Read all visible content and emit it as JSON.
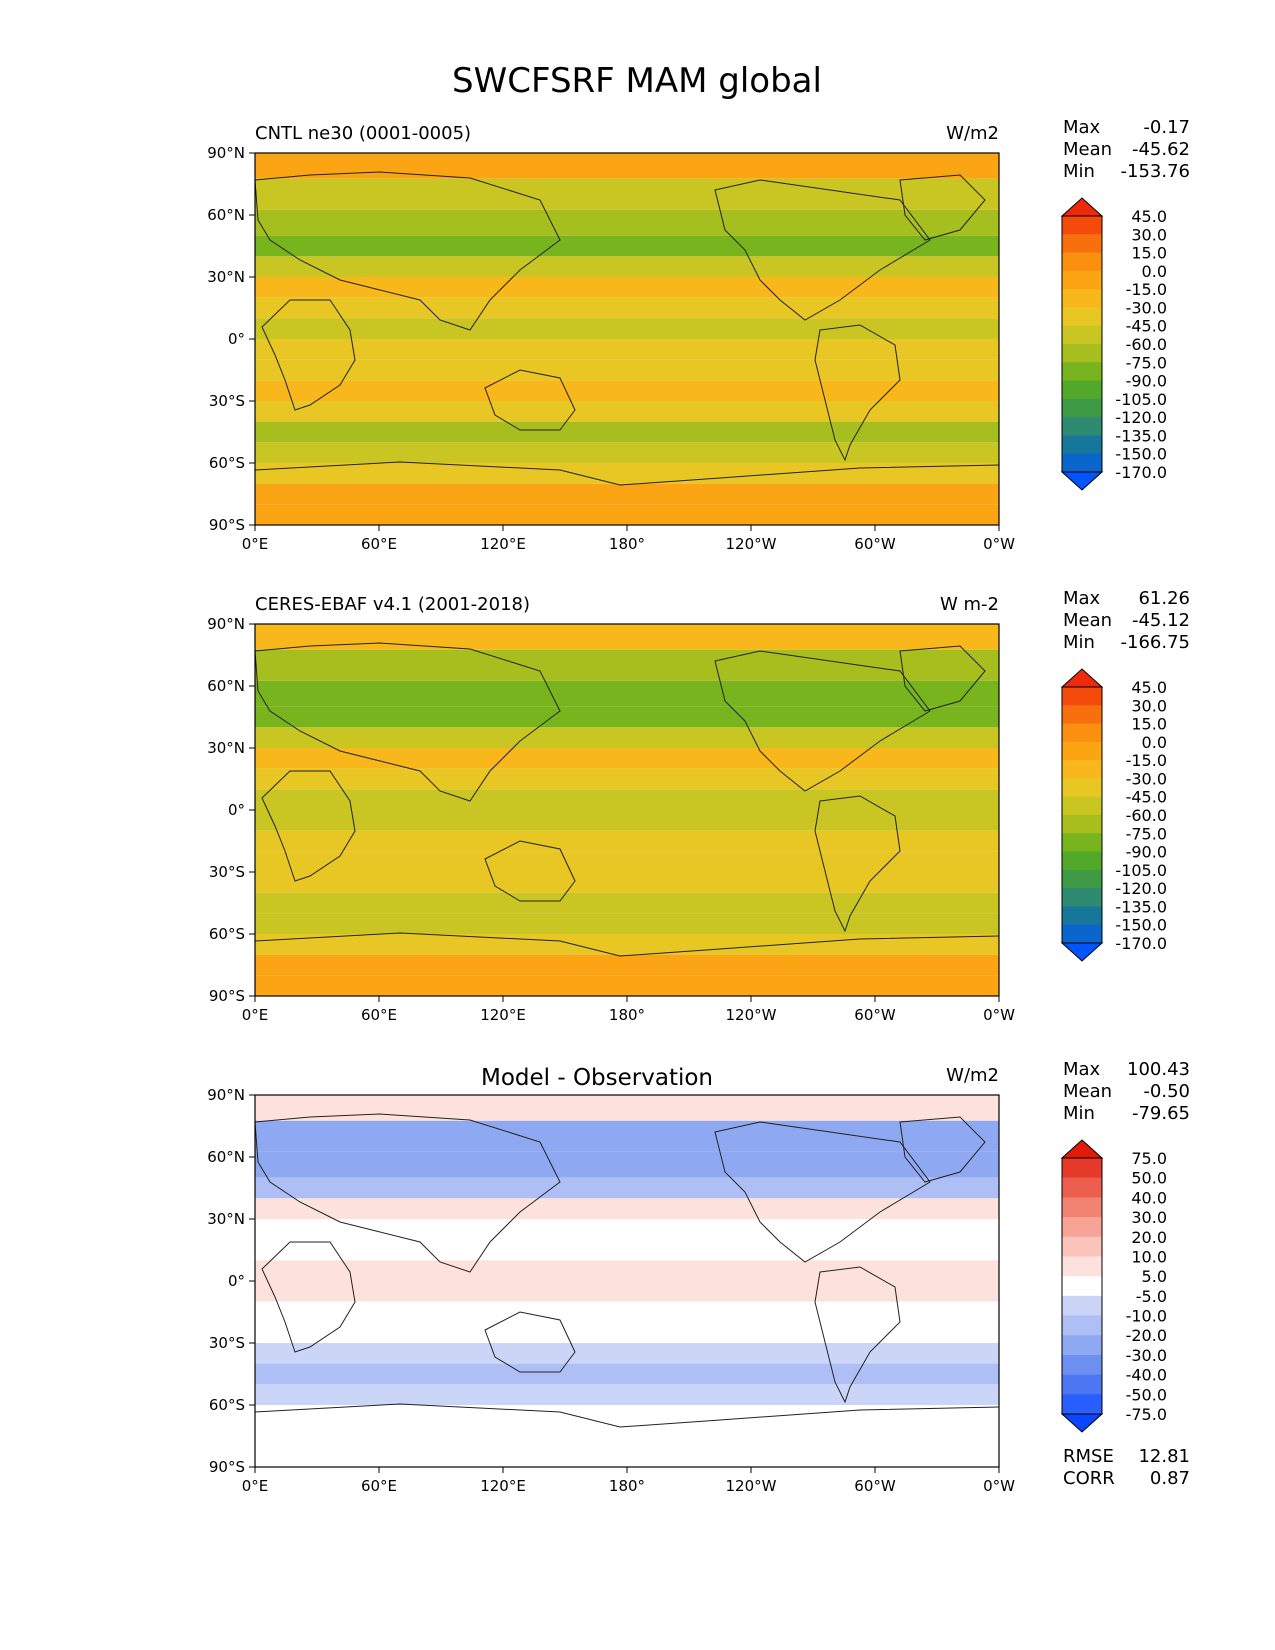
{
  "title": "SWCFSRF MAM global",
  "panel_colors": {
    "green_scale": [
      "#0055ff",
      "#0a66cc",
      "#16779a",
      "#2e8a70",
      "#3e9a45",
      "#52a828",
      "#78b41e",
      "#a6bf1e",
      "#c9c624",
      "#e8c624",
      "#f8b71a",
      "#fba514",
      "#fb8f10",
      "#f8700e",
      "#f44a0c",
      "#ee2a0a"
    ],
    "diff_scale": [
      "#0a46ff",
      "#2a5fff",
      "#4b77f2",
      "#6d8ff0",
      "#8fa8f2",
      "#aebff5",
      "#cad5f8",
      "#e2e8fb",
      "#ffffff",
      "#fde1dc",
      "#fbc4bb",
      "#f7a497",
      "#f28272",
      "#ec5f4f",
      "#e63b2b",
      "#e11b0a"
    ]
  },
  "chart_data": [
    {
      "type": "heatmap",
      "subtitle": "CNTL ne30 (0001-0005)",
      "units": "W/m2",
      "xticks": [
        "0°E",
        "60°E",
        "120°E",
        "180°",
        "120°W",
        "60°W",
        "0°W"
      ],
      "yticks": [
        "90°N",
        "60°N",
        "30°N",
        "0°",
        "30°S",
        "60°S",
        "90°S"
      ],
      "stats": [
        {
          "label": "Max",
          "value": "-0.17"
        },
        {
          "label": "Mean",
          "value": "-45.62"
        },
        {
          "label": "Min",
          "value": "-153.76"
        }
      ],
      "colorbar_levels": [
        "45.0",
        "30.0",
        "15.0",
        "0.0",
        "-15.0",
        "-30.0",
        "-45.0",
        "-60.0",
        "-75.0",
        "-90.0",
        "-105.0",
        "-120.0",
        "-135.0",
        "-150.0",
        "-170.0"
      ],
      "zonal_profile": {
        "lat": [
          85,
          70,
          55,
          45,
          35,
          25,
          15,
          5,
          -5,
          -15,
          -25,
          -35,
          -45,
          -55,
          -65,
          -75,
          -85
        ],
        "value": [
          -10,
          -50,
          -70,
          -80,
          -45,
          -25,
          -35,
          -45,
          -40,
          -35,
          -25,
          -40,
          -60,
          -55,
          -30,
          -10,
          -5
        ]
      }
    },
    {
      "type": "heatmap",
      "subtitle": "CERES-EBAF v4.1 (2001-2018)",
      "units": "W m-2",
      "xticks": [
        "0°E",
        "60°E",
        "120°E",
        "180°",
        "120°W",
        "60°W",
        "0°W"
      ],
      "yticks": [
        "90°N",
        "60°N",
        "30°N",
        "0°",
        "30°S",
        "60°S",
        "90°S"
      ],
      "stats": [
        {
          "label": "Max",
          "value": "61.26"
        },
        {
          "label": "Mean",
          "value": "-45.12"
        },
        {
          "label": "Min",
          "value": "-166.75"
        }
      ],
      "colorbar_levels": [
        "45.0",
        "30.0",
        "15.0",
        "0.0",
        "-15.0",
        "-30.0",
        "-45.0",
        "-60.0",
        "-75.0",
        "-90.0",
        "-105.0",
        "-120.0",
        "-135.0",
        "-150.0",
        "-170.0"
      ],
      "zonal_profile": {
        "lat": [
          85,
          70,
          55,
          45,
          35,
          25,
          15,
          5,
          -5,
          -15,
          -25,
          -35,
          -45,
          -55,
          -65,
          -75,
          -85
        ],
        "value": [
          -20,
          -60,
          -75,
          -85,
          -55,
          -25,
          -35,
          -50,
          -45,
          -35,
          -30,
          -40,
          -55,
          -50,
          -30,
          -10,
          -5
        ]
      }
    },
    {
      "type": "heatmap",
      "subtitle": "Model - Observation",
      "units": "W/m2",
      "xticks": [
        "0°E",
        "60°E",
        "120°E",
        "180°",
        "120°W",
        "60°W",
        "0°W"
      ],
      "yticks": [
        "90°N",
        "60°N",
        "30°N",
        "0°",
        "30°S",
        "60°S",
        "90°S"
      ],
      "stats": [
        {
          "label": "Max",
          "value": "100.43"
        },
        {
          "label": "Mean",
          "value": "-0.50"
        },
        {
          "label": "Min",
          "value": "-79.65"
        }
      ],
      "extra_stats": [
        {
          "label": "RMSE",
          "value": "12.81"
        },
        {
          "label": "CORR",
          "value": "0.87"
        }
      ],
      "colorbar_levels": [
        "75.0",
        "50.0",
        "40.0",
        "30.0",
        "20.0",
        "10.0",
        "5.0",
        "-5.0",
        "-10.0",
        "-20.0",
        "-30.0",
        "-40.0",
        "-50.0",
        "-75.0"
      ],
      "zonal_profile": {
        "lat": [
          85,
          70,
          55,
          45,
          35,
          25,
          15,
          5,
          -5,
          -15,
          -25,
          -35,
          -45,
          -55,
          -65,
          -75,
          -85
        ],
        "value": [
          8,
          -25,
          -20,
          -10,
          10,
          5,
          -3,
          8,
          10,
          3,
          5,
          -5,
          -12,
          -8,
          2,
          0,
          0
        ]
      }
    }
  ]
}
